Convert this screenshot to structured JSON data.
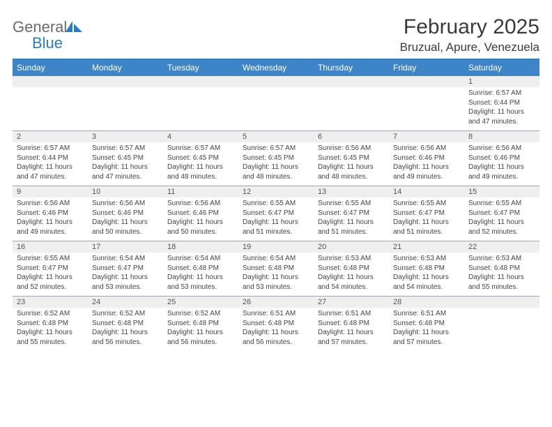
{
  "logo": {
    "text_gray": "General",
    "text_blue": "Blue"
  },
  "title": "February 2025",
  "location": "Bruzual, Apure, Venezuela",
  "colors": {
    "header_bar": "#3d85c6",
    "header_border_top": "#2b6aa8",
    "band_bg": "#efefef",
    "week_border": "#9aa8b5",
    "logo_gray": "#6b6b6b",
    "logo_blue": "#2b7cc0"
  },
  "dow": [
    "Sunday",
    "Monday",
    "Tuesday",
    "Wednesday",
    "Thursday",
    "Friday",
    "Saturday"
  ],
  "weeks": [
    [
      {
        "n": "",
        "sr": "",
        "ss": "",
        "dl": ""
      },
      {
        "n": "",
        "sr": "",
        "ss": "",
        "dl": ""
      },
      {
        "n": "",
        "sr": "",
        "ss": "",
        "dl": ""
      },
      {
        "n": "",
        "sr": "",
        "ss": "",
        "dl": ""
      },
      {
        "n": "",
        "sr": "",
        "ss": "",
        "dl": ""
      },
      {
        "n": "",
        "sr": "",
        "ss": "",
        "dl": ""
      },
      {
        "n": "1",
        "sr": "Sunrise: 6:57 AM",
        "ss": "Sunset: 6:44 PM",
        "dl": "Daylight: 11 hours and 47 minutes."
      }
    ],
    [
      {
        "n": "2",
        "sr": "Sunrise: 6:57 AM",
        "ss": "Sunset: 6:44 PM",
        "dl": "Daylight: 11 hours and 47 minutes."
      },
      {
        "n": "3",
        "sr": "Sunrise: 6:57 AM",
        "ss": "Sunset: 6:45 PM",
        "dl": "Daylight: 11 hours and 47 minutes."
      },
      {
        "n": "4",
        "sr": "Sunrise: 6:57 AM",
        "ss": "Sunset: 6:45 PM",
        "dl": "Daylight: 11 hours and 48 minutes."
      },
      {
        "n": "5",
        "sr": "Sunrise: 6:57 AM",
        "ss": "Sunset: 6:45 PM",
        "dl": "Daylight: 11 hours and 48 minutes."
      },
      {
        "n": "6",
        "sr": "Sunrise: 6:56 AM",
        "ss": "Sunset: 6:45 PM",
        "dl": "Daylight: 11 hours and 48 minutes."
      },
      {
        "n": "7",
        "sr": "Sunrise: 6:56 AM",
        "ss": "Sunset: 6:46 PM",
        "dl": "Daylight: 11 hours and 49 minutes."
      },
      {
        "n": "8",
        "sr": "Sunrise: 6:56 AM",
        "ss": "Sunset: 6:46 PM",
        "dl": "Daylight: 11 hours and 49 minutes."
      }
    ],
    [
      {
        "n": "9",
        "sr": "Sunrise: 6:56 AM",
        "ss": "Sunset: 6:46 PM",
        "dl": "Daylight: 11 hours and 49 minutes."
      },
      {
        "n": "10",
        "sr": "Sunrise: 6:56 AM",
        "ss": "Sunset: 6:46 PM",
        "dl": "Daylight: 11 hours and 50 minutes."
      },
      {
        "n": "11",
        "sr": "Sunrise: 6:56 AM",
        "ss": "Sunset: 6:46 PM",
        "dl": "Daylight: 11 hours and 50 minutes."
      },
      {
        "n": "12",
        "sr": "Sunrise: 6:55 AM",
        "ss": "Sunset: 6:47 PM",
        "dl": "Daylight: 11 hours and 51 minutes."
      },
      {
        "n": "13",
        "sr": "Sunrise: 6:55 AM",
        "ss": "Sunset: 6:47 PM",
        "dl": "Daylight: 11 hours and 51 minutes."
      },
      {
        "n": "14",
        "sr": "Sunrise: 6:55 AM",
        "ss": "Sunset: 6:47 PM",
        "dl": "Daylight: 11 hours and 51 minutes."
      },
      {
        "n": "15",
        "sr": "Sunrise: 6:55 AM",
        "ss": "Sunset: 6:47 PM",
        "dl": "Daylight: 11 hours and 52 minutes."
      }
    ],
    [
      {
        "n": "16",
        "sr": "Sunrise: 6:55 AM",
        "ss": "Sunset: 6:47 PM",
        "dl": "Daylight: 11 hours and 52 minutes."
      },
      {
        "n": "17",
        "sr": "Sunrise: 6:54 AM",
        "ss": "Sunset: 6:47 PM",
        "dl": "Daylight: 11 hours and 53 minutes."
      },
      {
        "n": "18",
        "sr": "Sunrise: 6:54 AM",
        "ss": "Sunset: 6:48 PM",
        "dl": "Daylight: 11 hours and 53 minutes."
      },
      {
        "n": "19",
        "sr": "Sunrise: 6:54 AM",
        "ss": "Sunset: 6:48 PM",
        "dl": "Daylight: 11 hours and 53 minutes."
      },
      {
        "n": "20",
        "sr": "Sunrise: 6:53 AM",
        "ss": "Sunset: 6:48 PM",
        "dl": "Daylight: 11 hours and 54 minutes."
      },
      {
        "n": "21",
        "sr": "Sunrise: 6:53 AM",
        "ss": "Sunset: 6:48 PM",
        "dl": "Daylight: 11 hours and 54 minutes."
      },
      {
        "n": "22",
        "sr": "Sunrise: 6:53 AM",
        "ss": "Sunset: 6:48 PM",
        "dl": "Daylight: 11 hours and 55 minutes."
      }
    ],
    [
      {
        "n": "23",
        "sr": "Sunrise: 6:52 AM",
        "ss": "Sunset: 6:48 PM",
        "dl": "Daylight: 11 hours and 55 minutes."
      },
      {
        "n": "24",
        "sr": "Sunrise: 6:52 AM",
        "ss": "Sunset: 6:48 PM",
        "dl": "Daylight: 11 hours and 56 minutes."
      },
      {
        "n": "25",
        "sr": "Sunrise: 6:52 AM",
        "ss": "Sunset: 6:48 PM",
        "dl": "Daylight: 11 hours and 56 minutes."
      },
      {
        "n": "26",
        "sr": "Sunrise: 6:51 AM",
        "ss": "Sunset: 6:48 PM",
        "dl": "Daylight: 11 hours and 56 minutes."
      },
      {
        "n": "27",
        "sr": "Sunrise: 6:51 AM",
        "ss": "Sunset: 6:48 PM",
        "dl": "Daylight: 11 hours and 57 minutes."
      },
      {
        "n": "28",
        "sr": "Sunrise: 6:51 AM",
        "ss": "Sunset: 6:48 PM",
        "dl": "Daylight: 11 hours and 57 minutes."
      },
      {
        "n": "",
        "sr": "",
        "ss": "",
        "dl": ""
      }
    ]
  ]
}
